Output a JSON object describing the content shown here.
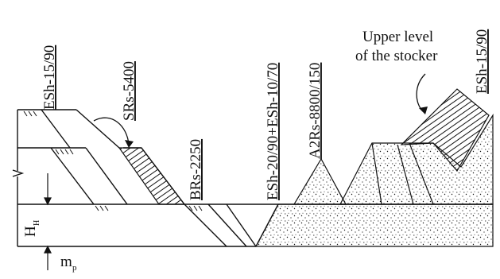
{
  "labels": {
    "esh_15_90_left": "ESh-15/90",
    "srs_5400": "SRs-5400",
    "brs_2250": "BRs-2250",
    "esh_combo": "ESh-20/90+ESh-10/70",
    "a2rs": "A2Rs-8800/150",
    "esh_15_90_right": "ESh-15/90",
    "upper_level_line1": "Upper level",
    "upper_level_line2": "of the stocker",
    "h_symbol": "H",
    "h_sub": "H",
    "m_symbol": "m",
    "m_sub": "p"
  }
}
